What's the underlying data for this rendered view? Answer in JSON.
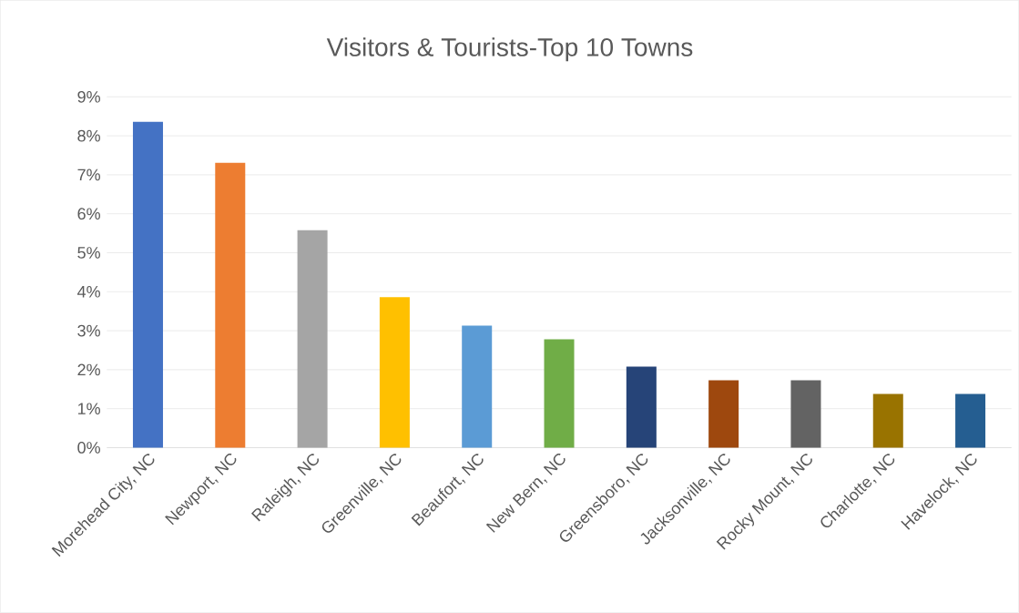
{
  "chart_data": {
    "type": "bar",
    "title": "Visitors & Tourists-Top 10 Towns",
    "categories": [
      "Morehead City, NC",
      "Newport, NC",
      "Raleigh, NC",
      "Greenville, NC",
      "Beaufort, NC",
      "New Bern, NC",
      "Greensboro, NC",
      "Jacksonville, NC",
      "Rocky Mount, NC",
      "Charlotte, NC",
      "Havelock, NC"
    ],
    "values": [
      8.36,
      7.31,
      5.58,
      3.86,
      3.13,
      2.78,
      2.08,
      1.73,
      1.73,
      1.38,
      1.38
    ],
    "colors": [
      "#4472c4",
      "#ed7d31",
      "#a5a5a5",
      "#ffc000",
      "#5b9bd5",
      "#70ad47",
      "#264478",
      "#9e480e",
      "#636363",
      "#997300",
      "#255e91"
    ],
    "ylim": [
      0,
      9
    ],
    "yticks": [
      {
        "value": 0,
        "label": "0%"
      },
      {
        "value": 1,
        "label": "1%"
      },
      {
        "value": 2,
        "label": "2%"
      },
      {
        "value": 3,
        "label": "3%"
      },
      {
        "value": 4,
        "label": "4%"
      },
      {
        "value": 5,
        "label": "5%"
      },
      {
        "value": 6,
        "label": "6%"
      },
      {
        "value": 7,
        "label": "7%"
      },
      {
        "value": 8,
        "label": "8%"
      },
      {
        "value": 9,
        "label": "9%"
      }
    ],
    "grid": "y"
  }
}
